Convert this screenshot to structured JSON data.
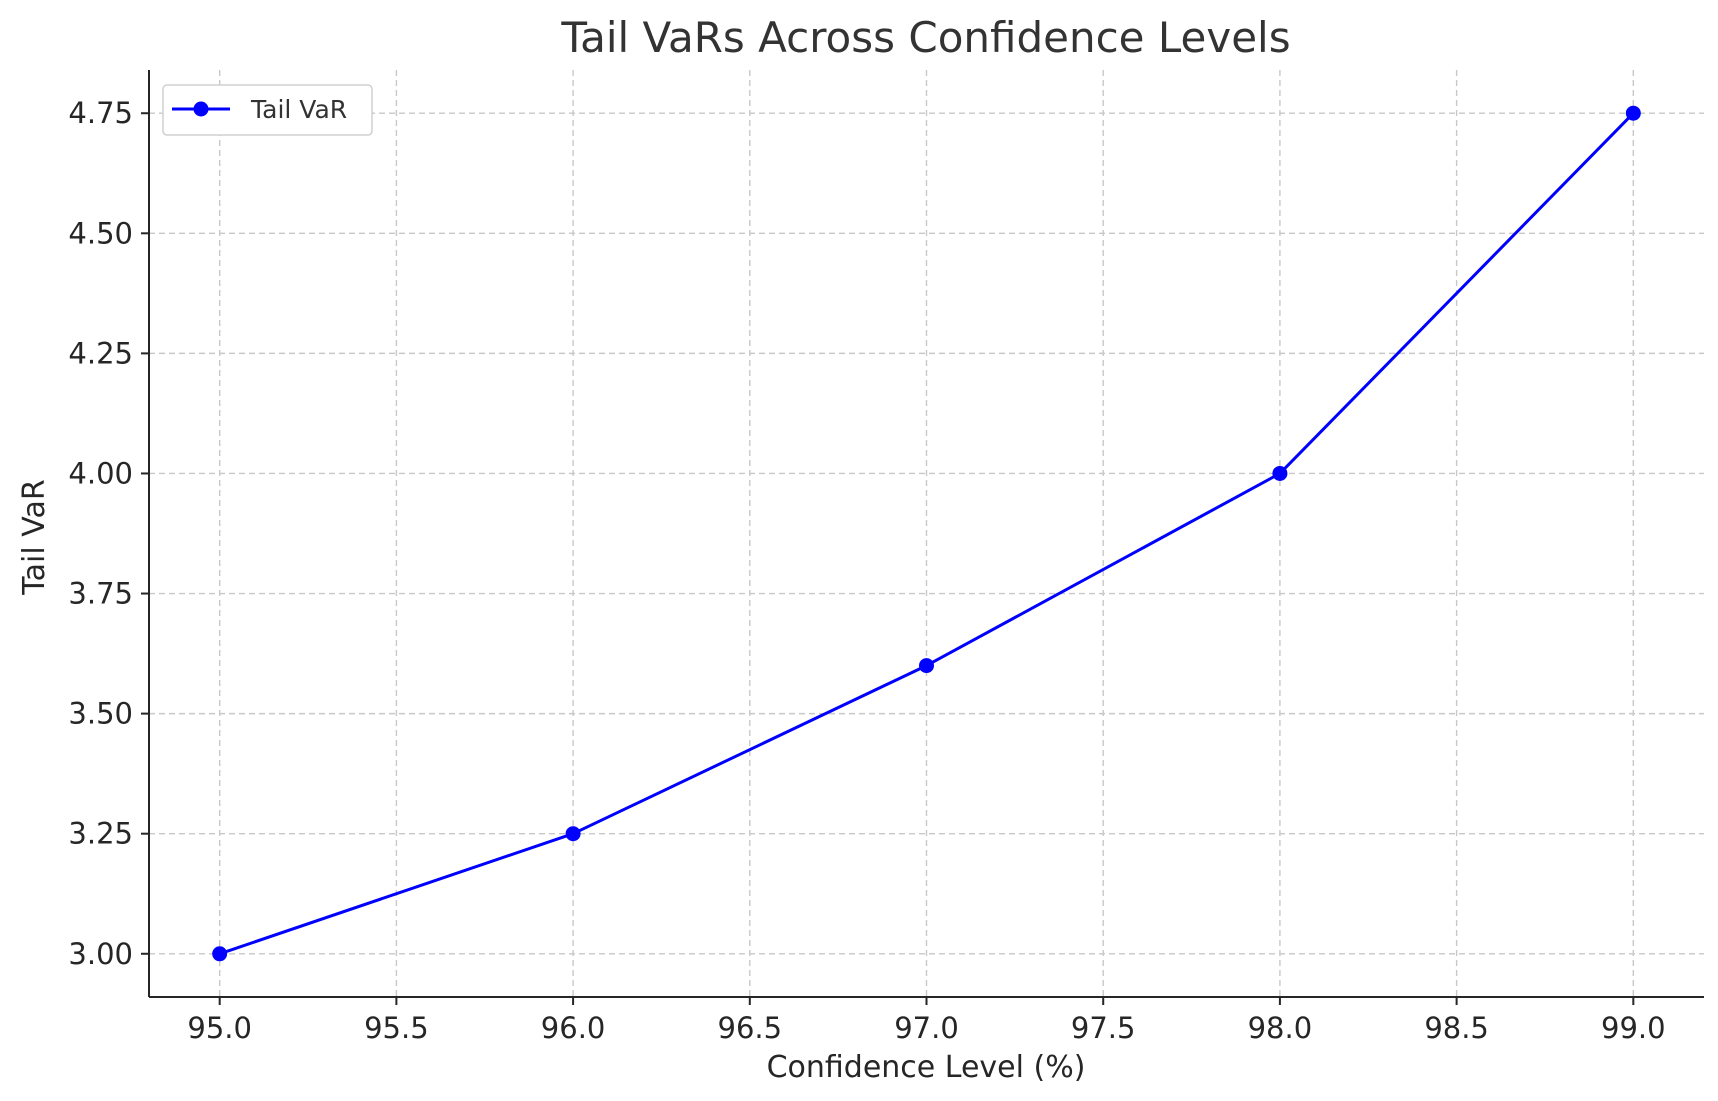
{
  "chart_data": {
    "type": "line",
    "title": "Tail VaRs Across Confidence Levels",
    "xlabel": "Confidence Level (%)",
    "ylabel": "Tail VaR",
    "x": [
      95,
      96,
      97,
      98,
      99
    ],
    "series": [
      {
        "name": "Tail VaR",
        "values": [
          3.0,
          3.25,
          3.6,
          4.0,
          4.75
        ],
        "color": "#0000ff",
        "marker": "circle"
      }
    ],
    "xlim": [
      94.8,
      99.2
    ],
    "ylim": [
      2.91,
      4.84
    ],
    "x_ticks": [
      "95.0",
      "95.5",
      "96.0",
      "96.5",
      "97.0",
      "97.5",
      "98.0",
      "98.5",
      "99.0"
    ],
    "y_ticks": [
      "3.00",
      "3.25",
      "3.50",
      "3.75",
      "4.00",
      "4.25",
      "4.50",
      "4.75"
    ],
    "grid": true,
    "legend_position": "top-left"
  }
}
